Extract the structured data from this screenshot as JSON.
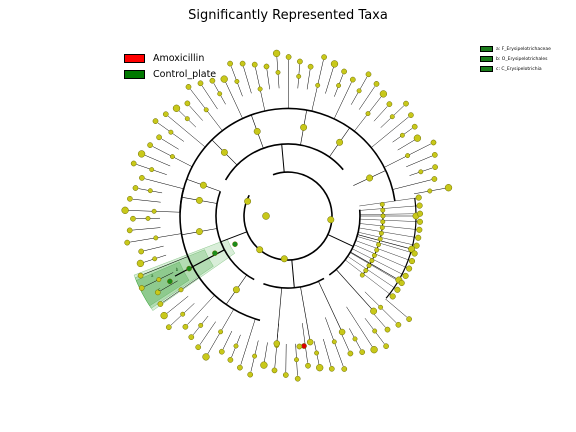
{
  "title": "Significantly Represented Taxa",
  "legend": [
    {
      "label": "Amoxicillin",
      "color": "#ff0000"
    },
    {
      "label": "Control_plate",
      "color": "#007800"
    }
  ],
  "clade_legend": [
    {
      "label": "a: F_Erysipelotrichaceae",
      "color": "#1a7a1a"
    },
    {
      "label": "b: O_Erysipelotrichales",
      "color": "#1a7a1a"
    },
    {
      "label": "c: C_Erysipelotrichia",
      "color": "#1a7a1a"
    }
  ],
  "highlight": {
    "letters": [
      "a",
      "b",
      "c"
    ],
    "color": "#2e9e2e"
  },
  "colors": {
    "node": "#c8c81a",
    "node_edge": "#6b6b00",
    "enriched_control": "#1a8c1a",
    "enriched_amoxicillin": "#dd0000",
    "branch": "#000000"
  }
}
